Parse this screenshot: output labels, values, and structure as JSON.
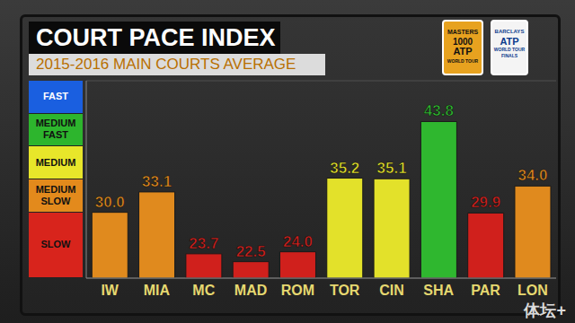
{
  "chart_data": {
    "type": "bar",
    "title": "COURT PACE INDEX",
    "subtitle": "2015-2016 MAIN COURTS AVERAGE",
    "categories": [
      "IW",
      "MIA",
      "MC",
      "MAD",
      "ROM",
      "TOR",
      "CIN",
      "SHA",
      "PAR",
      "LON"
    ],
    "values": [
      30.0,
      33.1,
      23.7,
      22.5,
      24.0,
      35.2,
      35.1,
      43.8,
      29.9,
      34.0
    ],
    "value_labels": [
      "30.0",
      "33.1",
      "23.7",
      "22.5",
      "24.0",
      "35.2",
      "35.1",
      "43.8",
      "29.9",
      "34.0"
    ],
    "colors": [
      "#e08a1e",
      "#e08a1e",
      "#d0201c",
      "#d0201c",
      "#d0201c",
      "#e3e12a",
      "#e3e12a",
      "#2fb72f",
      "#d0201c",
      "#e08a1e"
    ],
    "data_labels": true,
    "ylim": [
      20,
      50
    ],
    "yticks": [
      20,
      30,
      35,
      40,
      45,
      50
    ],
    "tick_labels": "x",
    "grid": true,
    "bands": [
      {
        "label": "FAST",
        "from": 45,
        "to": 50,
        "color": "#1a5fe0"
      },
      {
        "label": "MEDIUM FAST",
        "from": 40,
        "to": 45,
        "color": "#2db52d"
      },
      {
        "label": "MEDIUM",
        "from": 35,
        "to": 40,
        "color": "#e8e62a"
      },
      {
        "label": "MEDIUM SLOW",
        "from": 30,
        "to": 35,
        "color": "#e38a1c"
      },
      {
        "label": "SLOW",
        "from": 20,
        "to": 30,
        "color": "#d8241c"
      }
    ],
    "annotations": [
      "MASTERS",
      "1000",
      "ATP",
      "WORLD TOUR",
      "BARCLAYS",
      "ATP",
      "WORLD TOUR FINALS",
      "体坛+"
    ]
  }
}
